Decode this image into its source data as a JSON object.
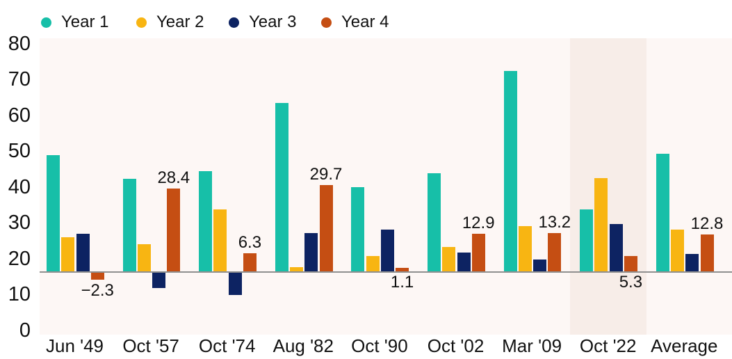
{
  "colors": {
    "plot_bg": "#FDF7F5",
    "highlight_band": "#F7EDE8",
    "baseline": "#8F8F8F",
    "text": "#111111",
    "year1": "#17BFA8",
    "year2": "#F8B512",
    "year3": "#0D2362",
    "year4": "#C54E13"
  },
  "chart_data": {
    "type": "bar",
    "title": "",
    "categories": [
      "Jun '49",
      "Oct '57",
      "Oct '74",
      "Aug '82",
      "Oct '90",
      "Oct '02",
      "Mar '09",
      "Oct '22",
      "Average"
    ],
    "series": [
      {
        "name": "Year 1",
        "color": "#17BFA8",
        "values": [
          40.1,
          31.9,
          34.6,
          58.0,
          28.9,
          33.7,
          69.1,
          21.3,
          40.4
        ]
      },
      {
        "name": "Year 2",
        "color": "#F8B512",
        "values": [
          11.8,
          9.4,
          21.2,
          1.5,
          5.3,
          8.3,
          15.5,
          32.1,
          14.3
        ]
      },
      {
        "name": "Year 3",
        "color": "#0D2362",
        "values": [
          13.0,
          -5.2,
          -7.6,
          13.1,
          14.4,
          6.5,
          4.0,
          16.2,
          6.1
        ]
      },
      {
        "name": "Year 4",
        "color": "#C54E13",
        "values": [
          -2.3,
          28.4,
          6.3,
          29.7,
          1.1,
          12.9,
          13.2,
          5.3,
          12.8
        ]
      }
    ],
    "data_labels": {
      "series": "Year 4",
      "texts": [
        "−2.3",
        "28.4",
        "6.3",
        "29.7",
        "1.1",
        "12.9",
        "13.2",
        "5.3",
        "12.8"
      ],
      "placements": [
        "below",
        "above",
        "above",
        "above",
        "below",
        "above",
        "above",
        "below",
        "above"
      ]
    },
    "y_axis": {
      "ticks": [
        80,
        70,
        60,
        50,
        40,
        30,
        20,
        10,
        0
      ]
    },
    "highlight_category": "Oct '22",
    "grid": false,
    "legend_position": "top"
  }
}
